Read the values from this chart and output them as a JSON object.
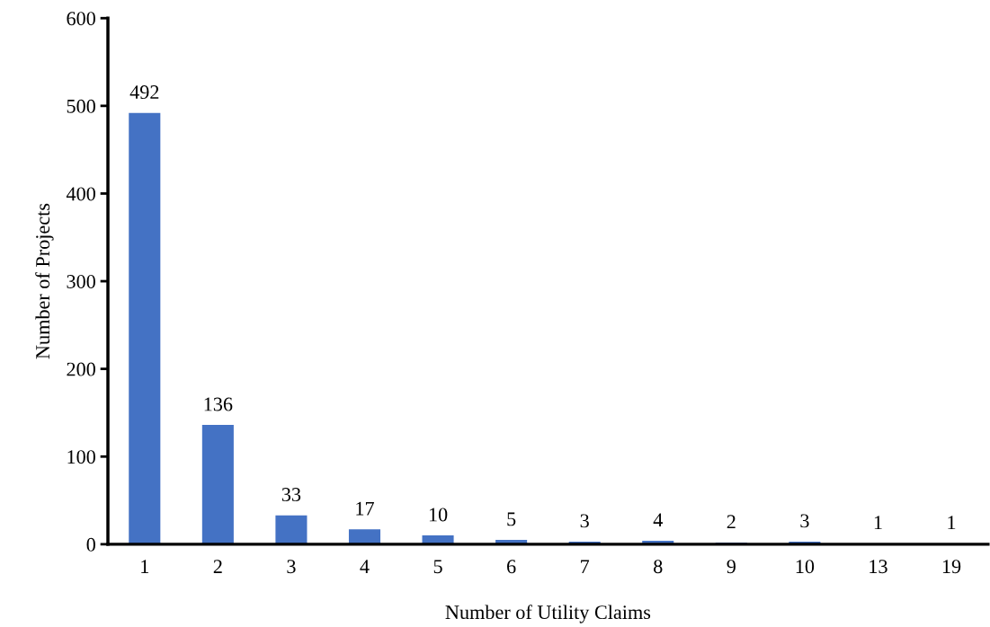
{
  "chart_data": {
    "type": "bar",
    "xlabel": "Number of Utility Claims",
    "ylabel": "Number of Projects",
    "categories": [
      "1",
      "2",
      "3",
      "4",
      "5",
      "6",
      "7",
      "8",
      "9",
      "10",
      "13",
      "19"
    ],
    "values": [
      492,
      136,
      33,
      17,
      10,
      5,
      3,
      4,
      2,
      3,
      1,
      1
    ],
    "color": "#4472c4",
    "ylim": [
      0,
      600
    ],
    "yticks": [
      0,
      100,
      200,
      300,
      400,
      500,
      600
    ],
    "grid": false,
    "data_labels": true
  }
}
